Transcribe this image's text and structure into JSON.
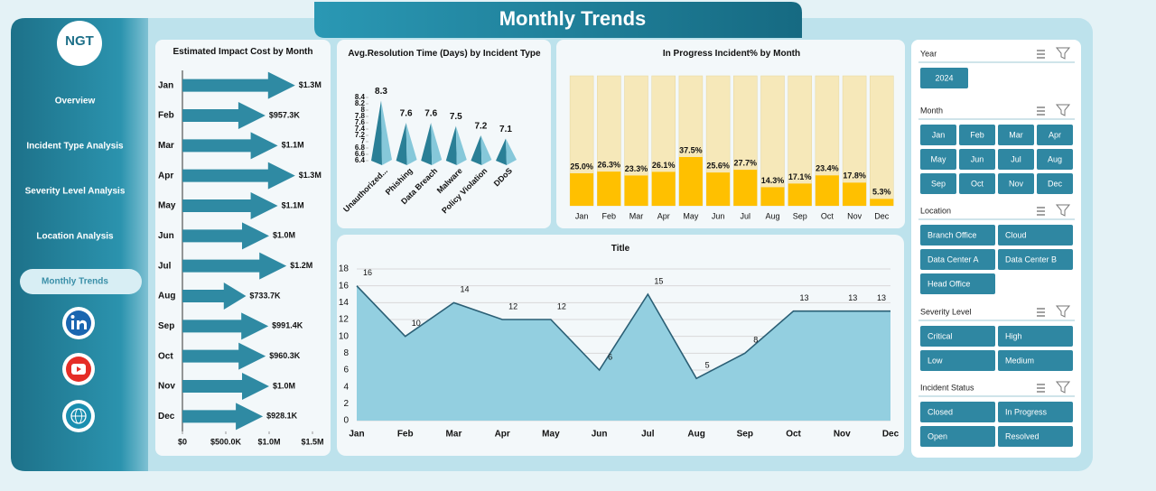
{
  "header": {
    "title": "Monthly Trends"
  },
  "sidebar": {
    "logo": "NGT",
    "nav": [
      "Overview",
      "Incident Type Analysis",
      "Severity Level  Analysis",
      "Location Analysis",
      "Monthly Trends"
    ],
    "active": 4
  },
  "slicers": [
    {
      "title": "Year",
      "items": [
        "2024"
      ]
    },
    {
      "title": "Month",
      "items": [
        "Jan",
        "Feb",
        "Mar",
        "Apr",
        "May",
        "Jun",
        "Jul",
        "Aug",
        "Sep",
        "Oct",
        "Nov",
        "Dec"
      ]
    },
    {
      "title": "Location",
      "items": [
        "Branch Office",
        "Cloud",
        "Data Center A",
        "Data Center B",
        "Head Office"
      ]
    },
    {
      "title": "Severity Level",
      "items": [
        "Critical",
        "High",
        "Low",
        "Medium"
      ]
    },
    {
      "title": "Incident Status",
      "items": [
        "Closed",
        "In Progress",
        "Open",
        "Resolved"
      ]
    }
  ],
  "chart_data": [
    {
      "type": "hbar",
      "title": "Estimated Impact Cost by Month",
      "categories": [
        "Jan",
        "Feb",
        "Mar",
        "Apr",
        "May",
        "Jun",
        "Jul",
        "Aug",
        "Sep",
        "Oct",
        "Nov",
        "Dec"
      ],
      "values": [
        1300000,
        957300,
        1100000,
        1300000,
        1100000,
        1000000,
        1200000,
        733700,
        991400,
        960300,
        1000000,
        928100
      ],
      "value_labels": [
        "$1.3M",
        "$957.3K",
        "$1.1M",
        "$1.3M",
        "$1.1M",
        "$1.0M",
        "$1.2M",
        "$733.7K",
        "$991.4K",
        "$960.3K",
        "$1.0M",
        "$928.1K"
      ],
      "color": "#2f8aa3",
      "xlim": [
        0,
        1500000
      ],
      "xticks": [
        {
          "value": 0,
          "label": "$0"
        },
        {
          "value": 500000,
          "label": "$500.0K"
        },
        {
          "value": 1000000,
          "label": "$1.0M"
        },
        {
          "value": 1500000,
          "label": "$1.5M"
        }
      ]
    },
    {
      "type": "pyramid",
      "title": "Avg.Resolution Time (Days) by Incident Type",
      "categories": [
        "Unauthorized...",
        "Phishing",
        "Data Breach",
        "Malware",
        "Policy Violation",
        "DDoS"
      ],
      "values": [
        8.3,
        7.6,
        7.6,
        7.5,
        7.2,
        7.1
      ],
      "color": "#3a9db5",
      "ylim": [
        6.4,
        8.4
      ],
      "yticks": [
        6.4,
        6.6,
        6.8,
        7,
        7.2,
        7.4,
        7.6,
        7.8,
        8,
        8.2,
        8.4
      ]
    },
    {
      "type": "bar",
      "title": "In Progress Incident% by Month",
      "categories": [
        "Jan",
        "Feb",
        "Mar",
        "Apr",
        "May",
        "Jun",
        "Jul",
        "Aug",
        "Sep",
        "Oct",
        "Nov",
        "Dec"
      ],
      "values": [
        25.0,
        26.3,
        23.3,
        26.1,
        37.5,
        25.6,
        27.7,
        14.3,
        17.1,
        23.4,
        17.8,
        5.3
      ],
      "value_labels": [
        "25.0%",
        "26.3%",
        "23.3%",
        "26.1%",
        "37.5%",
        "25.6%",
        "27.7%",
        "14.3%",
        "17.1%",
        "23.4%",
        "17.8%",
        "5.3%"
      ],
      "color": "#ffc000",
      "track_color": "#f6e8b9",
      "ylim": [
        0,
        100
      ]
    },
    {
      "type": "area",
      "title": "Title",
      "categories": [
        "Jan",
        "Feb",
        "Mar",
        "Apr",
        "May",
        "Jun",
        "Jul",
        "Aug",
        "Sep",
        "Oct",
        "Nov",
        "Dec"
      ],
      "values": [
        16,
        10,
        14,
        12,
        12,
        6,
        15,
        5,
        8,
        13,
        13,
        13
      ],
      "color": "#93cfe0",
      "line_color": "#2b5f75",
      "ylim": [
        0,
        18
      ],
      "yticks": [
        0,
        2,
        4,
        6,
        8,
        10,
        12,
        14,
        16,
        18
      ],
      "grid": true
    }
  ]
}
